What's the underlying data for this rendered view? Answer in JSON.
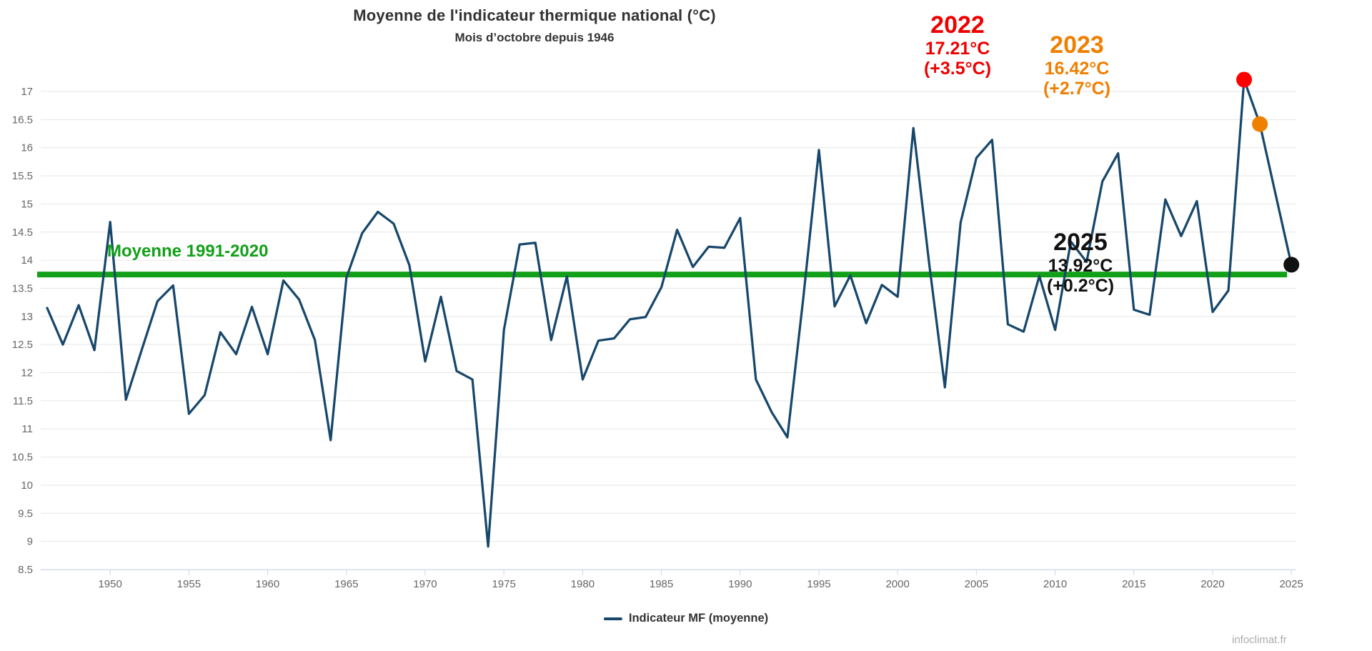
{
  "header": {
    "title": "Moyenne de l'indicateur thermique national (°C)",
    "subtitle": "Mois d’octobre depuis 1946"
  },
  "legend": {
    "label": "Indicateur MF (moyenne)"
  },
  "watermark": "infoclimat.fr",
  "reference_mean": {
    "label": "Moyenne 1991-2020",
    "value_c": 13.72
  },
  "annotations": {
    "y2022": {
      "year": "2022",
      "temp": "17.21°C",
      "delta": "(+3.5°C)",
      "color": "#EE0000"
    },
    "y2023": {
      "year": "2023",
      "temp": "16.42°C",
      "delta": "(+2.7°C)",
      "color": "#F07F00"
    },
    "y2025": {
      "year": "2025",
      "temp": "13.92°C",
      "delta": "(+0.2°C)",
      "color": "#111111"
    }
  },
  "chart_data": {
    "type": "line",
    "title": "Moyenne de l'indicateur thermique national (°C)",
    "subtitle": "Mois d’octobre depuis 1946",
    "xlabel": "",
    "ylabel": "",
    "year_start": 1946,
    "series": [
      {
        "name": "Indicateur MF (moyenne)",
        "color": "#17476B",
        "values": [
          13.15,
          12.5,
          13.2,
          12.4,
          14.68,
          11.52,
          12.4,
          13.27,
          13.55,
          11.27,
          11.6,
          12.72,
          12.33,
          13.17,
          12.33,
          13.64,
          13.3,
          12.58,
          10.8,
          13.69,
          14.48,
          14.86,
          14.65,
          13.91,
          12.2,
          13.35,
          12.03,
          11.88,
          8.91,
          12.76,
          14.28,
          14.31,
          12.58,
          13.71,
          11.88,
          12.57,
          12.61,
          12.95,
          12.99,
          13.52,
          14.54,
          13.88,
          14.24,
          14.22,
          14.75,
          11.88,
          11.3,
          10.85,
          13.3,
          15.96,
          13.18,
          13.73,
          12.88,
          13.56,
          13.35,
          16.35,
          13.95,
          11.74,
          14.67,
          15.82,
          16.14,
          12.86,
          12.73,
          13.72,
          12.76,
          14.33,
          13.97,
          15.4,
          15.9,
          13.12,
          13.03,
          15.08,
          14.43,
          15.05,
          13.08,
          13.46,
          17.21,
          16.42,
          15.17,
          13.92
        ]
      }
    ],
    "reference_line": {
      "label": "Moyenne 1991-2020",
      "value": 13.72,
      "color": "#12A018"
    },
    "highlight_points": [
      {
        "year": 2022,
        "value": 17.21,
        "color": "#FF0000"
      },
      {
        "year": 2023,
        "value": 16.42,
        "color": "#F08000"
      },
      {
        "year": 2025,
        "value": 13.92,
        "color": "#111111"
      }
    ],
    "ylim": [
      8.5,
      17
    ],
    "ytick_step": 0.5,
    "x_ticks": [
      1950,
      1955,
      1960,
      1965,
      1970,
      1975,
      1980,
      1985,
      1990,
      1995,
      2000,
      2005,
      2010,
      2015,
      2020,
      2025
    ],
    "grid": true,
    "legend_position": "bottom",
    "colors": {
      "gridline": "#E6E6E6",
      "axis_line": "#CCD6EB",
      "tick_label": "#666666",
      "title": "#333333"
    }
  }
}
